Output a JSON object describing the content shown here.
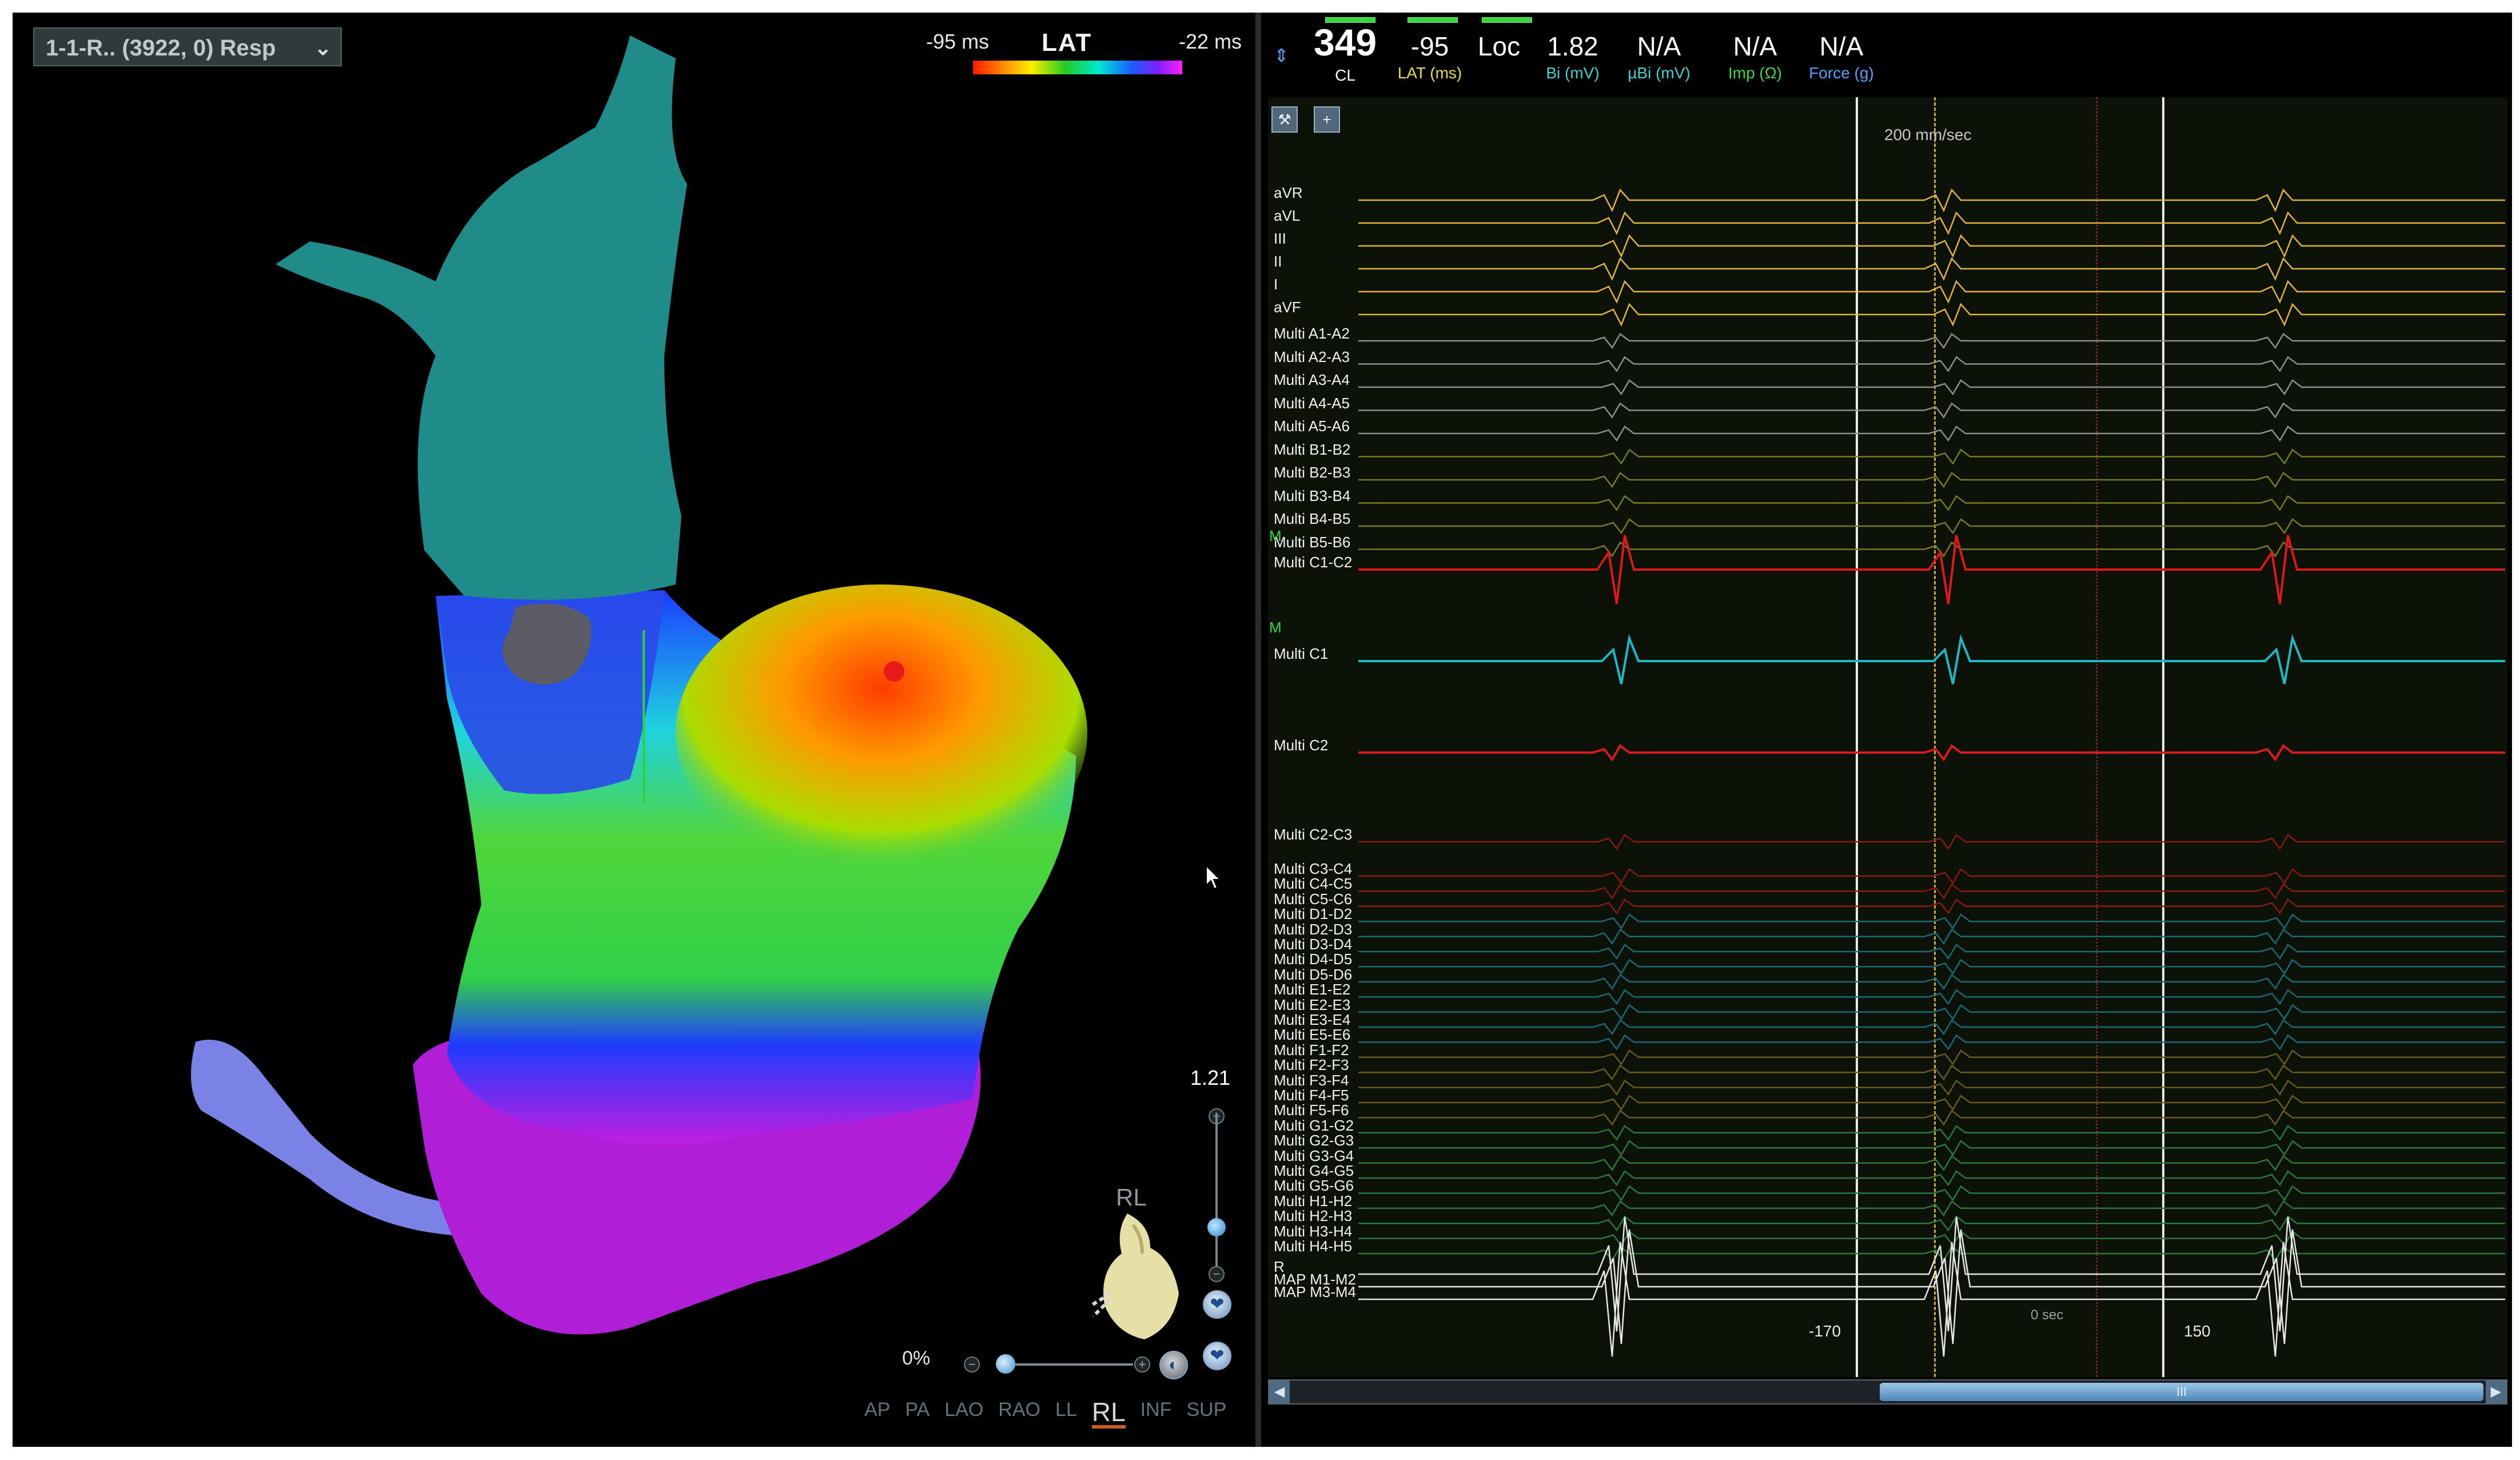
{
  "map": {
    "selector_label": "1-1-R.. (3922, 0) Resp",
    "scale": {
      "min": "-95 ms",
      "title": "LAT",
      "max": "-22 ms"
    },
    "zoom_value": "1.21",
    "opacity_value": "0%",
    "view_label": "RL",
    "views": [
      "AP",
      "PA",
      "LAO",
      "RAO",
      "LL",
      "RL",
      "INF",
      "SUP"
    ],
    "active_view": "RL",
    "colors": {
      "accent": "#d05a24",
      "tissue_teal": "#1f8c8a",
      "scar_gray": "#555555"
    }
  },
  "metrics": [
    {
      "value": "349",
      "label": "CL",
      "color": "#ffffff"
    },
    {
      "value": "-95",
      "label": "LAT (ms)",
      "color": "#e6e04a"
    },
    {
      "value": "Loc",
      "label": "",
      "color": "#ffffff"
    },
    {
      "value": "1.82",
      "label": "Bi (mV)",
      "color": "#3fd3d3"
    },
    {
      "value": "N/A",
      "label": "µBi (mV)",
      "color": "#3fd3d3"
    },
    {
      "value": "N/A",
      "label": "Imp (Ω)",
      "color": "#42d842"
    },
    {
      "value": "N/A",
      "label": "Force (g)",
      "color": "#5aa0ff"
    }
  ],
  "sweep_speed": "200 mm/sec",
  "channels": [
    "aVR",
    "aVL",
    "III",
    "II",
    "I",
    "aVF",
    "Multi  A1-A2",
    "Multi  A2-A3",
    "Multi  A3-A4",
    "Multi  A4-A5",
    "Multi  A5-A6",
    "Multi  B1-B2",
    "Multi  B2-B3",
    "Multi  B3-B4",
    "Multi  B4-B5",
    "Multi  B5-B6",
    "Multi  C1-C2",
    "Multi  C1",
    "Multi  C2",
    "Multi  C2-C3",
    "Multi  C3-C4",
    "Multi  C4-C5",
    "Multi  C5-C6",
    "Multi  D1-D2",
    "Multi  D2-D3",
    "Multi  D3-D4",
    "Multi  D4-D5",
    "Multi  D5-D6",
    "Multi  E1-E2",
    "Multi  E2-E3",
    "Multi  E3-E4",
    "Multi  E5-E6",
    "Multi  F1-F2",
    "Multi  F2-F3",
    "Multi  F3-F4",
    "Multi  F4-F5",
    "Multi  F5-F6",
    "Multi  G1-G2",
    "Multi  G2-G3",
    "Multi  G3-G4",
    "Multi  G4-G5",
    "Multi  G5-G6",
    "Multi  H1-H2",
    "Multi  H2-H3",
    "Multi  H3-H4",
    "Multi  H4-H5",
    "R",
    "MAP M1-M2",
    "MAP M3-M4"
  ],
  "channel_markers": [
    "M",
    "M"
  ],
  "time_labels": [
    "-170",
    "0 sec",
    "150"
  ],
  "scroll_thumb_label": "III",
  "tool_icons": [
    "wrench-icon",
    "add-trace-icon"
  ]
}
